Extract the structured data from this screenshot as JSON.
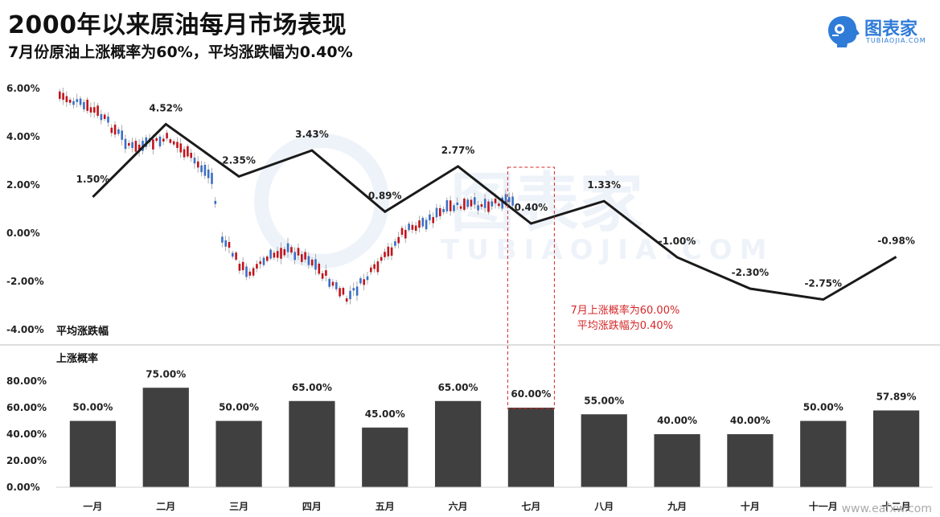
{
  "title": "2000年以来原油每月市场表现",
  "subtitle": "7月份原油上涨概率为60%，平均涨跌幅为0.40%",
  "logo": {
    "text": "图表家",
    "sub": "TUBIAOJIA.COM",
    "icon": "tubiaojia-head-icon",
    "color": "#2F7BD8"
  },
  "watermark_text": "www.eafxw.com",
  "annotation": {
    "line1": "7月上涨概率为60.00%",
    "line2": "平均涨跌幅为0.40%",
    "color": "#D62728"
  },
  "colors": {
    "line": "#1a1a1a",
    "bar": "#404040",
    "candle_up": "#3A6FC4",
    "candle_down": "#C0141B",
    "highlight": "#D62728"
  },
  "chart_data": [
    {
      "type": "line",
      "ylabel": "平均涨跌幅",
      "categories": [
        "一月",
        "二月",
        "三月",
        "四月",
        "五月",
        "六月",
        "七月",
        "八月",
        "九月",
        "十月",
        "十一月",
        "十二月"
      ],
      "values": [
        1.5,
        4.52,
        2.35,
        3.43,
        0.89,
        2.77,
        0.4,
        1.33,
        -1.0,
        -2.3,
        -2.75,
        -0.98
      ],
      "value_labels": [
        "1.50%",
        "4.52%",
        "2.35%",
        "3.43%",
        "0.89%",
        "2.77%",
        "0.40%",
        "1.33%",
        "-1.00%",
        "-2.30%",
        "-2.75%",
        "-0.98%"
      ],
      "yticks": [
        "6.00%",
        "4.00%",
        "2.00%",
        "0.00%",
        "-2.00%",
        "-4.00%"
      ],
      "ylim": [
        -4,
        6
      ],
      "grid": false
    },
    {
      "type": "bar",
      "ylabel": "上涨概率",
      "categories": [
        "一月",
        "二月",
        "三月",
        "四月",
        "五月",
        "六月",
        "七月",
        "八月",
        "九月",
        "十月",
        "十一月",
        "十二月"
      ],
      "values": [
        50.0,
        75.0,
        50.0,
        65.0,
        45.0,
        65.0,
        60.0,
        55.0,
        40.0,
        40.0,
        50.0,
        57.89
      ],
      "value_labels": [
        "50.00%",
        "75.00%",
        "50.00%",
        "65.00%",
        "45.00%",
        "65.00%",
        "60.00%",
        "55.00%",
        "40.00%",
        "40.00%",
        "50.00%",
        "57.89%"
      ],
      "yticks": [
        "80.00%",
        "60.00%",
        "40.00%",
        "20.00%",
        "0.00%"
      ],
      "ylim": [
        0,
        80
      ],
      "grid": false
    }
  ]
}
